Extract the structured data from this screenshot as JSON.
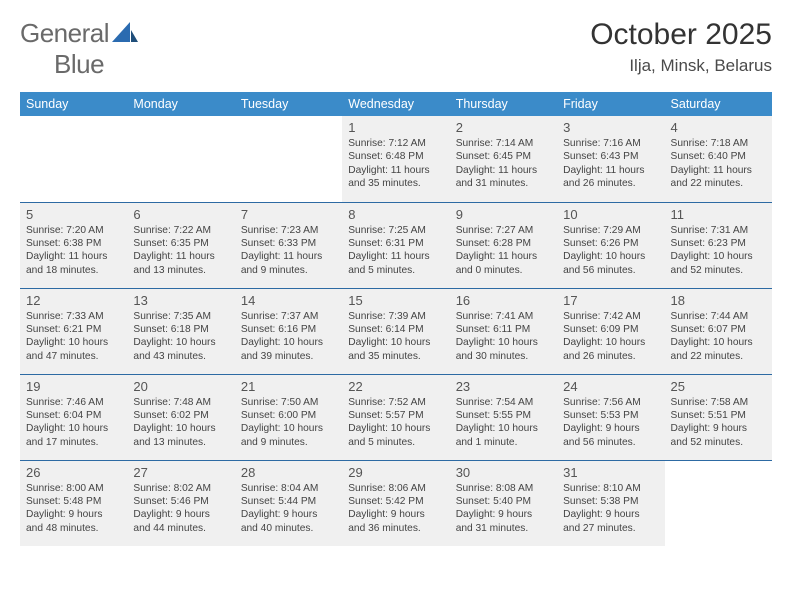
{
  "brand": {
    "part1": "General",
    "part2": "Blue"
  },
  "title": "October 2025",
  "location": "Ilja, Minsk, Belarus",
  "colors": {
    "header_bg": "#3b8bc9",
    "header_text": "#ffffff",
    "cell_bg": "#f0f0f0",
    "border": "#2d6aa3",
    "text": "#444444",
    "brand_gray": "#6a6a6a",
    "brand_blue": "#2b6bb0"
  },
  "day_headers": [
    "Sunday",
    "Monday",
    "Tuesday",
    "Wednesday",
    "Thursday",
    "Friday",
    "Saturday"
  ],
  "weeks": [
    [
      null,
      null,
      null,
      {
        "n": "1",
        "sr": "7:12 AM",
        "ss": "6:48 PM",
        "dl": "11 hours and 35 minutes."
      },
      {
        "n": "2",
        "sr": "7:14 AM",
        "ss": "6:45 PM",
        "dl": "11 hours and 31 minutes."
      },
      {
        "n": "3",
        "sr": "7:16 AM",
        "ss": "6:43 PM",
        "dl": "11 hours and 26 minutes."
      },
      {
        "n": "4",
        "sr": "7:18 AM",
        "ss": "6:40 PM",
        "dl": "11 hours and 22 minutes."
      }
    ],
    [
      {
        "n": "5",
        "sr": "7:20 AM",
        "ss": "6:38 PM",
        "dl": "11 hours and 18 minutes."
      },
      {
        "n": "6",
        "sr": "7:22 AM",
        "ss": "6:35 PM",
        "dl": "11 hours and 13 minutes."
      },
      {
        "n": "7",
        "sr": "7:23 AM",
        "ss": "6:33 PM",
        "dl": "11 hours and 9 minutes."
      },
      {
        "n": "8",
        "sr": "7:25 AM",
        "ss": "6:31 PM",
        "dl": "11 hours and 5 minutes."
      },
      {
        "n": "9",
        "sr": "7:27 AM",
        "ss": "6:28 PM",
        "dl": "11 hours and 0 minutes."
      },
      {
        "n": "10",
        "sr": "7:29 AM",
        "ss": "6:26 PM",
        "dl": "10 hours and 56 minutes."
      },
      {
        "n": "11",
        "sr": "7:31 AM",
        "ss": "6:23 PM",
        "dl": "10 hours and 52 minutes."
      }
    ],
    [
      {
        "n": "12",
        "sr": "7:33 AM",
        "ss": "6:21 PM",
        "dl": "10 hours and 47 minutes."
      },
      {
        "n": "13",
        "sr": "7:35 AM",
        "ss": "6:18 PM",
        "dl": "10 hours and 43 minutes."
      },
      {
        "n": "14",
        "sr": "7:37 AM",
        "ss": "6:16 PM",
        "dl": "10 hours and 39 minutes."
      },
      {
        "n": "15",
        "sr": "7:39 AM",
        "ss": "6:14 PM",
        "dl": "10 hours and 35 minutes."
      },
      {
        "n": "16",
        "sr": "7:41 AM",
        "ss": "6:11 PM",
        "dl": "10 hours and 30 minutes."
      },
      {
        "n": "17",
        "sr": "7:42 AM",
        "ss": "6:09 PM",
        "dl": "10 hours and 26 minutes."
      },
      {
        "n": "18",
        "sr": "7:44 AM",
        "ss": "6:07 PM",
        "dl": "10 hours and 22 minutes."
      }
    ],
    [
      {
        "n": "19",
        "sr": "7:46 AM",
        "ss": "6:04 PM",
        "dl": "10 hours and 17 minutes."
      },
      {
        "n": "20",
        "sr": "7:48 AM",
        "ss": "6:02 PM",
        "dl": "10 hours and 13 minutes."
      },
      {
        "n": "21",
        "sr": "7:50 AM",
        "ss": "6:00 PM",
        "dl": "10 hours and 9 minutes."
      },
      {
        "n": "22",
        "sr": "7:52 AM",
        "ss": "5:57 PM",
        "dl": "10 hours and 5 minutes."
      },
      {
        "n": "23",
        "sr": "7:54 AM",
        "ss": "5:55 PM",
        "dl": "10 hours and 1 minute."
      },
      {
        "n": "24",
        "sr": "7:56 AM",
        "ss": "5:53 PM",
        "dl": "9 hours and 56 minutes."
      },
      {
        "n": "25",
        "sr": "7:58 AM",
        "ss": "5:51 PM",
        "dl": "9 hours and 52 minutes."
      }
    ],
    [
      {
        "n": "26",
        "sr": "8:00 AM",
        "ss": "5:48 PM",
        "dl": "9 hours and 48 minutes."
      },
      {
        "n": "27",
        "sr": "8:02 AM",
        "ss": "5:46 PM",
        "dl": "9 hours and 44 minutes."
      },
      {
        "n": "28",
        "sr": "8:04 AM",
        "ss": "5:44 PM",
        "dl": "9 hours and 40 minutes."
      },
      {
        "n": "29",
        "sr": "8:06 AM",
        "ss": "5:42 PM",
        "dl": "9 hours and 36 minutes."
      },
      {
        "n": "30",
        "sr": "8:08 AM",
        "ss": "5:40 PM",
        "dl": "9 hours and 31 minutes."
      },
      {
        "n": "31",
        "sr": "8:10 AM",
        "ss": "5:38 PM",
        "dl": "9 hours and 27 minutes."
      },
      null
    ]
  ],
  "labels": {
    "sunrise": "Sunrise:",
    "sunset": "Sunset:",
    "daylight": "Daylight:"
  }
}
